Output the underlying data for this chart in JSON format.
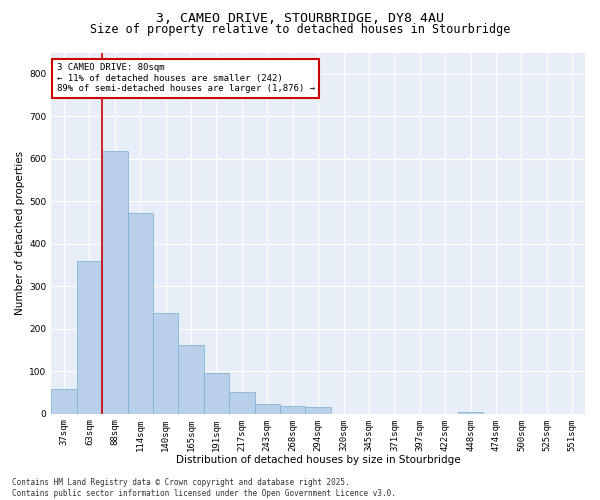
{
  "title_line1": "3, CAMEO DRIVE, STOURBRIDGE, DY8 4AU",
  "title_line2": "Size of property relative to detached houses in Stourbridge",
  "xlabel": "Distribution of detached houses by size in Stourbridge",
  "ylabel": "Number of detached properties",
  "bar_color": "#b8d0ea",
  "bar_edge_color": "#7aaed0",
  "background_color": "#e8eef8",
  "categories": [
    "37sqm",
    "63sqm",
    "88sqm",
    "114sqm",
    "140sqm",
    "165sqm",
    "191sqm",
    "217sqm",
    "243sqm",
    "268sqm",
    "294sqm",
    "320sqm",
    "345sqm",
    "371sqm",
    "397sqm",
    "422sqm",
    "448sqm",
    "474sqm",
    "500sqm",
    "525sqm",
    "551sqm"
  ],
  "values": [
    57,
    360,
    618,
    472,
    236,
    162,
    97,
    50,
    24,
    19,
    15,
    0,
    0,
    0,
    0,
    0,
    5,
    0,
    0,
    0,
    0
  ],
  "ylim": [
    0,
    850
  ],
  "yticks": [
    0,
    100,
    200,
    300,
    400,
    500,
    600,
    700,
    800
  ],
  "property_line_x": 1.5,
  "annotation_text": "3 CAMEO DRIVE: 80sqm\n← 11% of detached houses are smaller (242)\n89% of semi-detached houses are larger (1,876) →",
  "annotation_box_color": "#ffffff",
  "annotation_box_edge_color": "#cc0000",
  "vline_color": "#cc0000",
  "footer_line1": "Contains HM Land Registry data © Crown copyright and database right 2025.",
  "footer_line2": "Contains public sector information licensed under the Open Government Licence v3.0.",
  "title_fontsize": 9.5,
  "subtitle_fontsize": 8.5,
  "axis_label_fontsize": 7.5,
  "tick_fontsize": 6.5,
  "annotation_fontsize": 6.5,
  "footer_fontsize": 5.5
}
